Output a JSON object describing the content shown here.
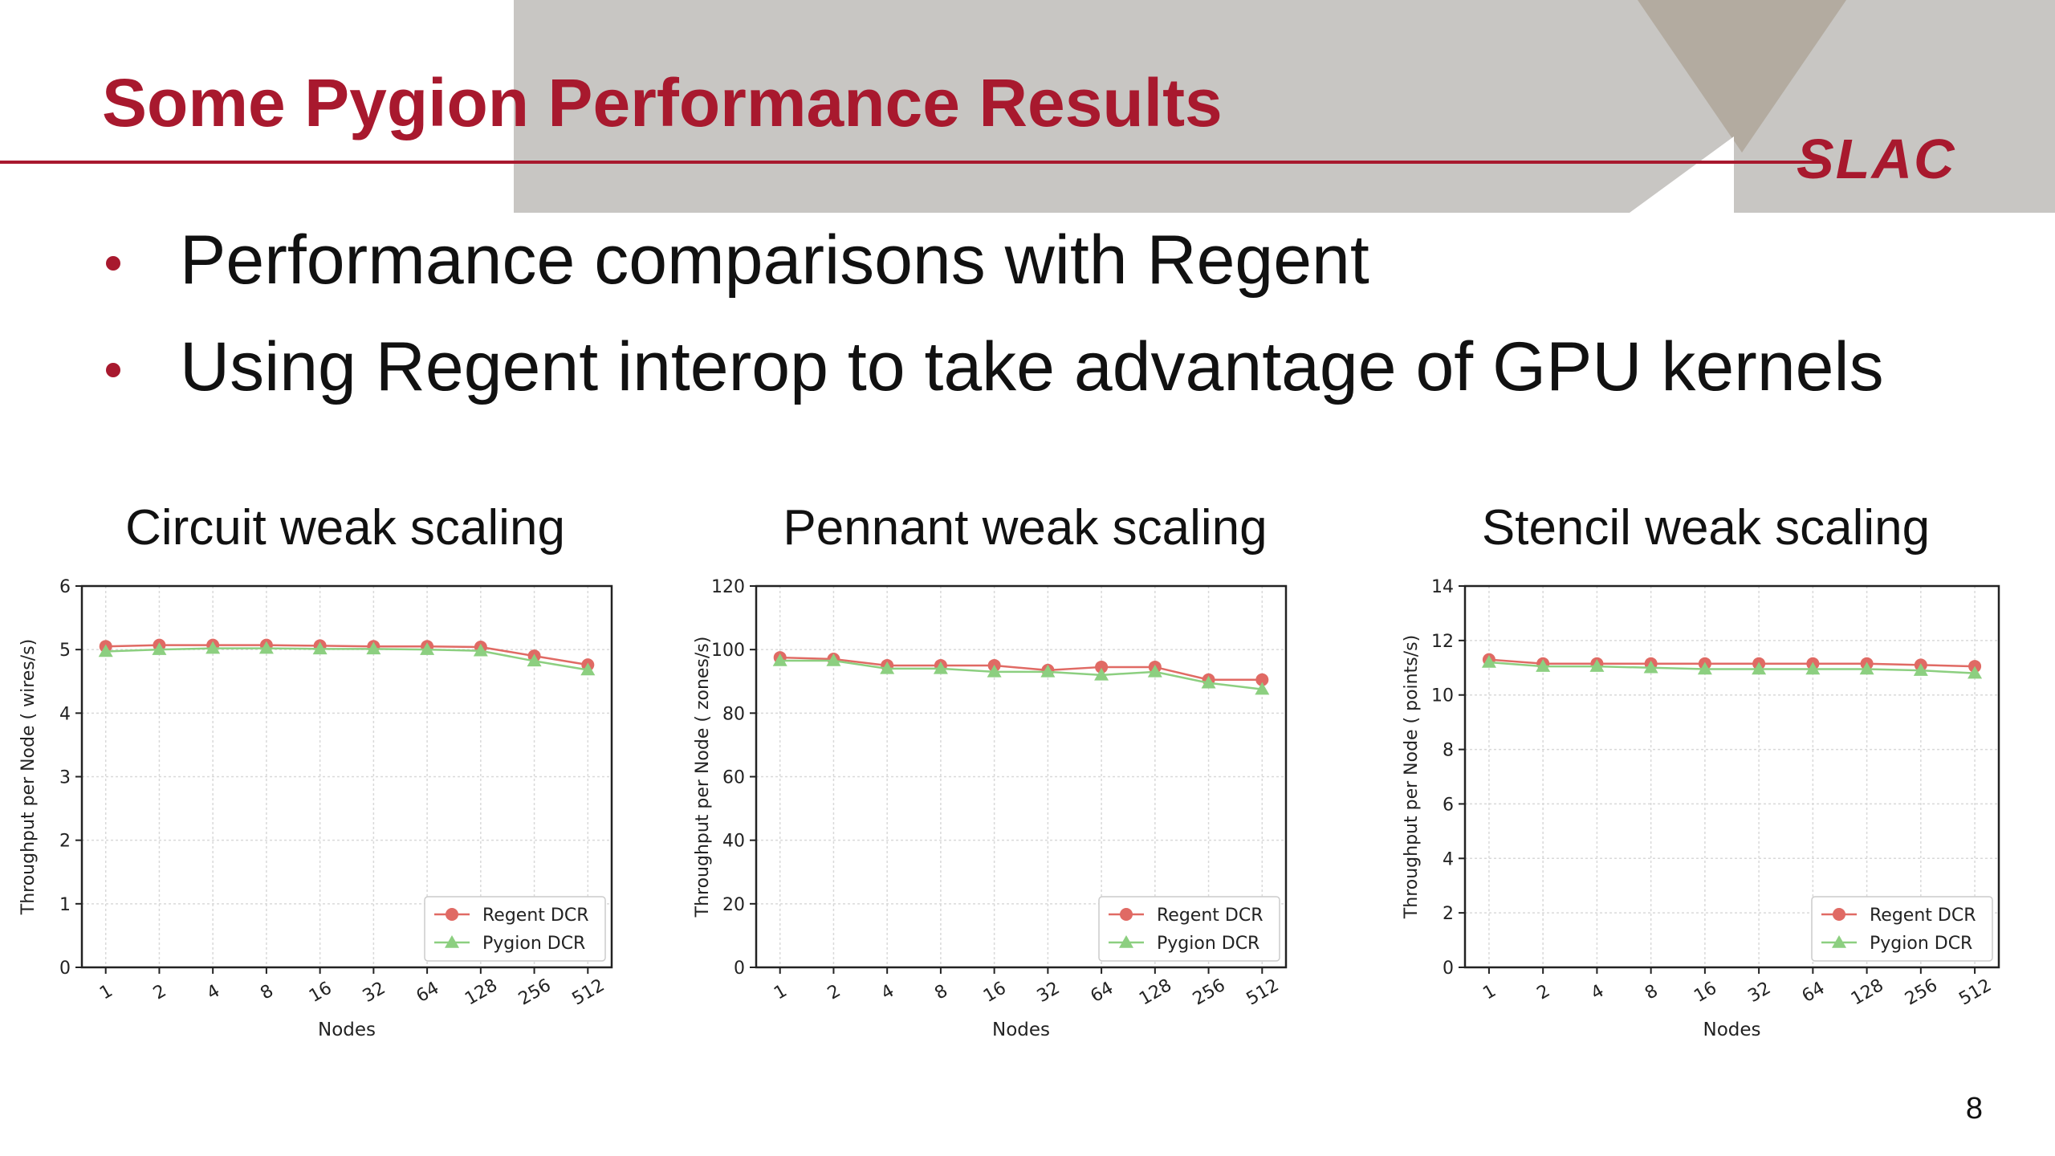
{
  "slide": {
    "title": "Some Pygion Performance Results",
    "logo": "SLAC",
    "bullets": [
      "Performance comparisons with Regent",
      "Using Regent interop to take advantage of GPU kernels"
    ],
    "page_number": "8"
  },
  "colors": {
    "accent": "#a8192e",
    "band": "#c8c6c3",
    "regent": "#e06a64",
    "pygion": "#8ccf80"
  },
  "chart_data": [
    {
      "type": "line",
      "title": "Circuit weak scaling",
      "xlabel": "Nodes",
      "ylabel": "Throughput per Node (      wires/s)",
      "categories": [
        "1",
        "2",
        "4",
        "8",
        "16",
        "32",
        "64",
        "128",
        "256",
        "512"
      ],
      "ylim": [
        0,
        6
      ],
      "yticks": [
        "0",
        "1",
        "2",
        "3",
        "4",
        "5",
        "6"
      ],
      "grid": true,
      "legend": "bottom-right",
      "series": [
        {
          "name": "Regent DCR",
          "marker": "circle",
          "values": [
            5.05,
            5.07,
            5.07,
            5.07,
            5.06,
            5.05,
            5.05,
            5.04,
            4.9,
            4.76
          ]
        },
        {
          "name": "Pygion DCR",
          "marker": "triangle",
          "values": [
            4.97,
            5.0,
            5.02,
            5.02,
            5.01,
            5.01,
            5.0,
            4.98,
            4.82,
            4.68
          ]
        }
      ]
    },
    {
      "type": "line",
      "title": "Pennant weak scaling",
      "xlabel": "Nodes",
      "ylabel": "Throughput per Node (      zones/s)",
      "categories": [
        "1",
        "2",
        "4",
        "8",
        "16",
        "32",
        "64",
        "128",
        "256",
        "512"
      ],
      "ylim": [
        0,
        120
      ],
      "yticks": [
        "0",
        "20",
        "40",
        "60",
        "80",
        "100",
        "120"
      ],
      "grid": true,
      "legend": "bottom-right",
      "series": [
        {
          "name": "Regent DCR",
          "marker": "circle",
          "values": [
            97.5,
            97.0,
            95.0,
            95.0,
            95.0,
            93.5,
            94.5,
            94.5,
            90.5,
            90.5
          ]
        },
        {
          "name": "Pygion DCR",
          "marker": "triangle",
          "values": [
            96.5,
            96.5,
            94.0,
            94.0,
            93.0,
            93.0,
            92.0,
            93.0,
            89.5,
            87.5
          ]
        }
      ]
    },
    {
      "type": "line",
      "title": "Stencil weak scaling",
      "xlabel": "Nodes",
      "ylabel": "Throughput per Node (      points/s)",
      "categories": [
        "1",
        "2",
        "4",
        "8",
        "16",
        "32",
        "64",
        "128",
        "256",
        "512"
      ],
      "ylim": [
        0,
        14
      ],
      "yticks": [
        "0",
        "2",
        "4",
        "6",
        "8",
        "10",
        "12",
        "14"
      ],
      "grid": true,
      "legend": "bottom-right",
      "series": [
        {
          "name": "Regent DCR",
          "marker": "circle",
          "values": [
            11.3,
            11.15,
            11.15,
            11.15,
            11.15,
            11.15,
            11.15,
            11.15,
            11.1,
            11.05
          ]
        },
        {
          "name": "Pygion DCR",
          "marker": "triangle",
          "values": [
            11.2,
            11.05,
            11.05,
            11.0,
            10.95,
            10.95,
            10.95,
            10.95,
            10.9,
            10.8
          ]
        }
      ]
    }
  ]
}
